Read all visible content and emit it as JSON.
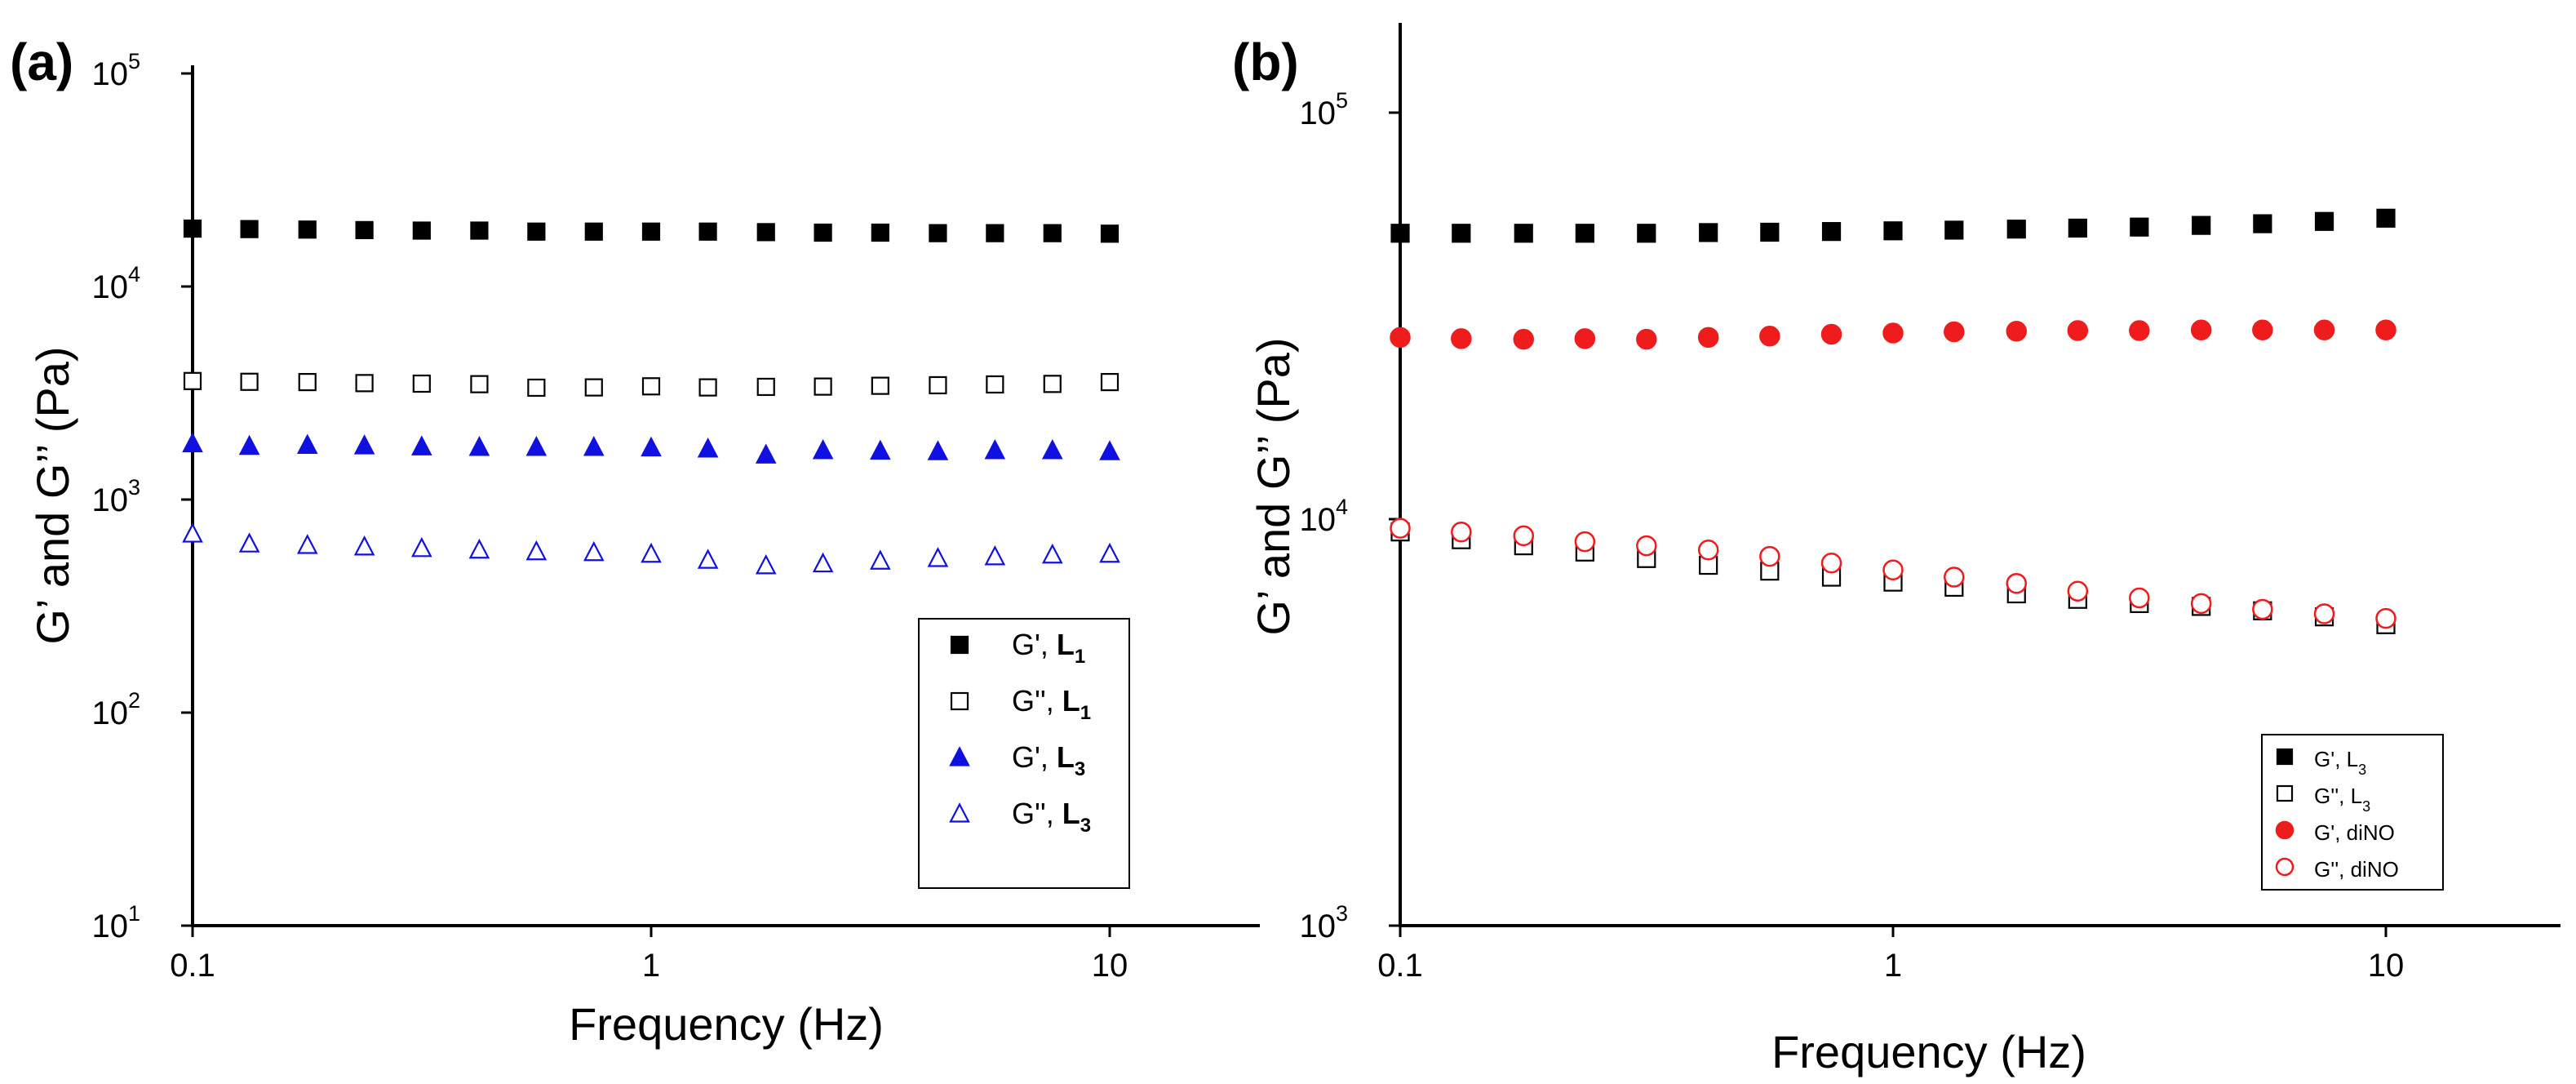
{
  "chart_data": [
    {
      "panel": "(a)",
      "type": "scatter",
      "xscale": "log",
      "yscale": "log",
      "xlabel": "Frequency (Hz)",
      "ylabel": "G’ and G’’ (Pa)",
      "xticks": [
        {
          "value": 0.1,
          "label": "0.1"
        },
        {
          "value": 1,
          "label": "1"
        },
        {
          "value": 10,
          "label": "10"
        }
      ],
      "yticks": [
        {
          "value": 10,
          "base": "10",
          "exp": "1"
        },
        {
          "value": 100,
          "base": "10",
          "exp": "2"
        },
        {
          "value": 1000,
          "base": "10",
          "exp": "3"
        },
        {
          "value": 10000,
          "base": "10",
          "exp": "4"
        },
        {
          "value": 100000,
          "base": "10",
          "exp": "5"
        }
      ],
      "x": [
        0.1,
        0.133,
        0.178,
        0.237,
        0.316,
        0.422,
        0.562,
        0.75,
        1.0,
        1.33,
        1.78,
        2.37,
        3.16,
        4.22,
        5.62,
        7.5,
        10.0
      ],
      "legend_position": "bottom-right",
      "series": [
        {
          "name": "G', L1",
          "legend": {
            "text": "G', ",
            "bold": "L",
            "sub": "1"
          },
          "marker": "square",
          "filled": true,
          "color": "#000000",
          "values": [
            18700,
            18600,
            18500,
            18400,
            18300,
            18300,
            18100,
            18100,
            18100,
            18100,
            18000,
            17900,
            17900,
            17800,
            17800,
            17800,
            17700
          ]
        },
        {
          "name": "G'', L1",
          "legend": {
            "text": "G'', ",
            "bold": "L",
            "sub": "1"
          },
          "marker": "square",
          "filled": false,
          "color": "#000000",
          "values": [
            3600,
            3570,
            3560,
            3520,
            3500,
            3480,
            3350,
            3360,
            3400,
            3360,
            3380,
            3390,
            3420,
            3440,
            3470,
            3490,
            3560
          ]
        },
        {
          "name": "G', L3",
          "legend": {
            "text": "G', ",
            "bold": "L",
            "sub": "3"
          },
          "marker": "triangle",
          "filled": true,
          "color": "#1010e0",
          "values": [
            1830,
            1780,
            1800,
            1790,
            1770,
            1760,
            1760,
            1760,
            1750,
            1730,
            1620,
            1700,
            1690,
            1680,
            1700,
            1700,
            1680
          ]
        },
        {
          "name": "G'', L3",
          "legend": {
            "text": "G'', ",
            "bold": "L",
            "sub": "3"
          },
          "marker": "triangle",
          "filled": false,
          "color": "#1010e0",
          "values": [
            690,
            620,
            610,
            600,
            590,
            580,
            570,
            565,
            555,
            520,
            490,
            500,
            515,
            530,
            540,
            550,
            555
          ]
        }
      ]
    },
    {
      "panel": "(b)",
      "type": "scatter",
      "xscale": "log",
      "yscale": "log",
      "xlabel": "Frequency (Hz)",
      "ylabel": "G’ and G’’ (Pa)",
      "xticks": [
        {
          "value": 0.1,
          "label": "0.1"
        },
        {
          "value": 1,
          "label": "1"
        },
        {
          "value": 10,
          "label": "10"
        }
      ],
      "yticks": [
        {
          "value": 1000,
          "base": "10",
          "exp": "3"
        },
        {
          "value": 10000,
          "base": "10",
          "exp": "4"
        },
        {
          "value": 100000,
          "base": "10",
          "exp": "5"
        }
      ],
      "x": [
        0.1,
        0.133,
        0.178,
        0.237,
        0.316,
        0.422,
        0.562,
        0.75,
        1.0,
        1.33,
        1.78,
        2.37,
        3.16,
        4.22,
        5.62,
        7.5,
        10.0
      ],
      "legend_position": "bottom-right",
      "series": [
        {
          "name": "G', L3",
          "legend": {
            "text": "G', L",
            "bold": "",
            "sub": "3"
          },
          "marker": "square",
          "filled": true,
          "color": "#000000",
          "values": [
            50500,
            50500,
            50500,
            50500,
            50500,
            50700,
            50800,
            51000,
            51200,
            51400,
            51700,
            52000,
            52300,
            52800,
            53300,
            54000,
            55000
          ]
        },
        {
          "name": "G'', L3",
          "legend": {
            "text": "G'', L",
            "bold": "",
            "sub": "3"
          },
          "marker": "square",
          "filled": false,
          "color": "#000000",
          "values": [
            9300,
            8900,
            8600,
            8300,
            8000,
            7700,
            7450,
            7200,
            7000,
            6800,
            6550,
            6350,
            6200,
            6100,
            5950,
            5750,
            5500
          ]
        },
        {
          "name": "G', diNO",
          "legend": {
            "text": "G', diNO",
            "bold": "",
            "sub": ""
          },
          "marker": "circle",
          "filled": true,
          "color": "#ee1c1c",
          "values": [
            28000,
            27800,
            27700,
            27800,
            27700,
            28000,
            28200,
            28500,
            28700,
            28900,
            29000,
            29100,
            29100,
            29200,
            29200,
            29200,
            29200
          ]
        },
        {
          "name": "G'', diNO",
          "legend": {
            "text": "G'', diNO",
            "bold": "",
            "sub": ""
          },
          "marker": "circle",
          "filled": false,
          "color": "#ee1c1c",
          "values": [
            9500,
            9300,
            9100,
            8800,
            8600,
            8400,
            8100,
            7800,
            7500,
            7200,
            6950,
            6650,
            6400,
            6200,
            6000,
            5850,
            5700
          ]
        }
      ]
    }
  ]
}
